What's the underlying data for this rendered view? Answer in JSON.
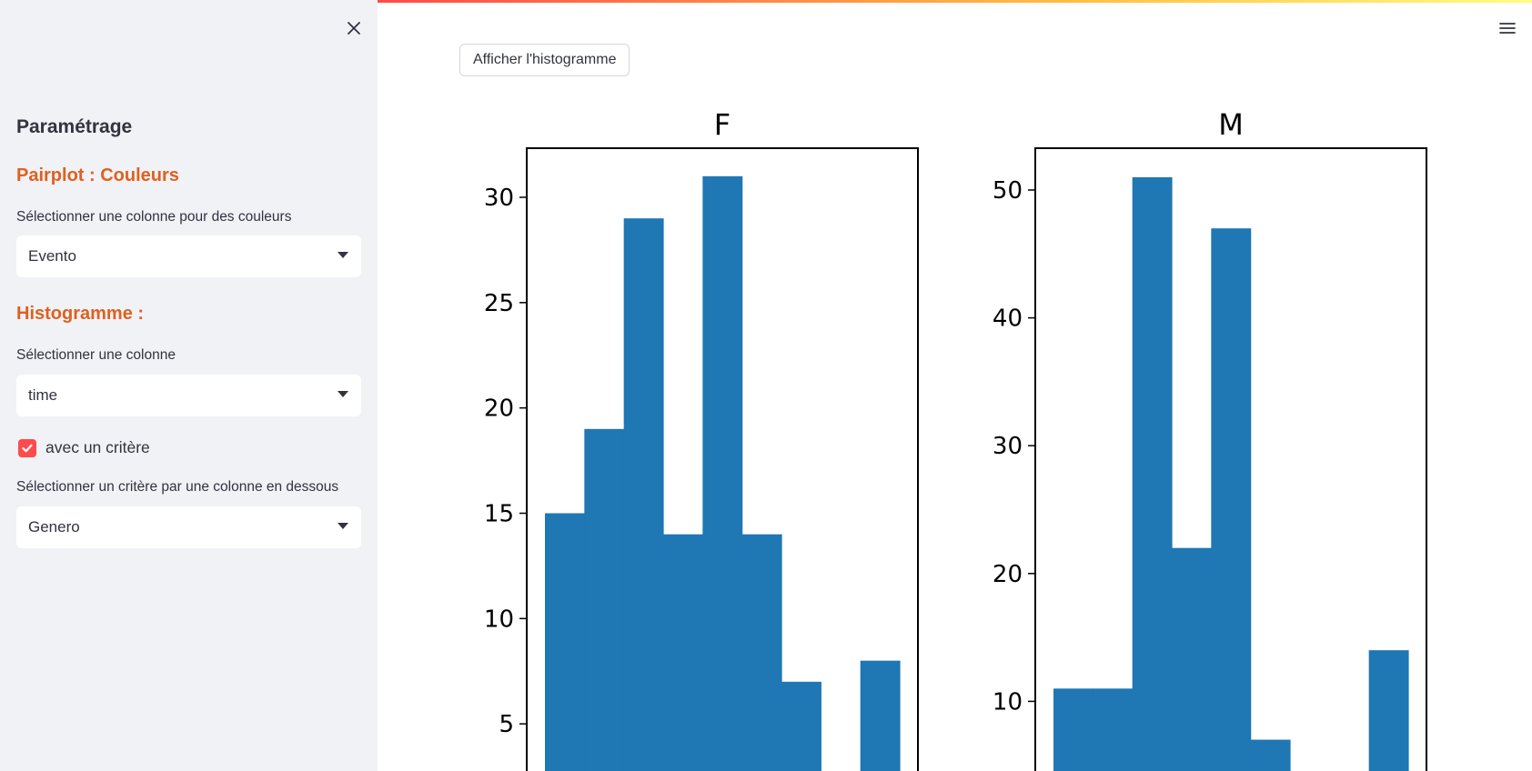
{
  "sidebar": {
    "section_title": "Paramétrage",
    "pairplot_title": "Pairplot : Couleurs",
    "pairplot_label": "Sélectionner une colonne pour des couleurs",
    "pairplot_value": "Evento",
    "histogram_title": "Histogramme :",
    "histogram_label": "Sélectionner une colonne",
    "histogram_value": "time",
    "criterion_checkbox_label": "avec un critère",
    "criterion_checked": true,
    "criterion_label": "Sélectionner un critère par une colonne en dessous",
    "criterion_value": "Genero"
  },
  "main": {
    "show_histogram_button": "Afficher l'histogramme"
  },
  "colors": {
    "accent": "#ff4b4b",
    "subheader": "#e0601f",
    "bar": "#1f77b4"
  },
  "chart_data": [
    {
      "type": "bar",
      "title": "F",
      "values": [
        15,
        19,
        29,
        14,
        31,
        14,
        7,
        0,
        8
      ],
      "yticks": [
        5,
        10,
        15,
        20,
        25,
        30
      ],
      "ylim": [
        0,
        32.5
      ]
    },
    {
      "type": "bar",
      "title": "M",
      "values": [
        11,
        11,
        51,
        22,
        47,
        7,
        0,
        0,
        14
      ],
      "yticks": [
        10,
        20,
        30,
        40,
        50
      ],
      "ylim": [
        0,
        53.5
      ]
    }
  ]
}
